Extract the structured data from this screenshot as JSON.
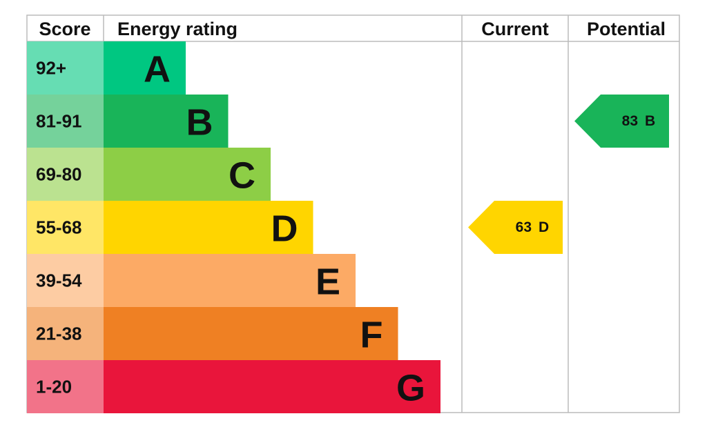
{
  "chart_data": {
    "type": "epc",
    "headers": [
      "Score",
      "Energy rating",
      "Current",
      "Potential"
    ],
    "bands": [
      {
        "score": "92+",
        "letter": "A",
        "color": "#00c781"
      },
      {
        "score": "81-91",
        "letter": "B",
        "color": "#19b459"
      },
      {
        "score": "69-80",
        "letter": "C",
        "color": "#8dce46"
      },
      {
        "score": "55-68",
        "letter": "D",
        "color": "#ffd500"
      },
      {
        "score": "39-54",
        "letter": "E",
        "color": "#fcaa65"
      },
      {
        "score": "21-38",
        "letter": "F",
        "color": "#ef8023"
      },
      {
        "score": "1-20",
        "letter": "G",
        "color": "#e9153b"
      }
    ],
    "current": {
      "value": 63,
      "letter": "D"
    },
    "potential": {
      "value": 83,
      "letter": "B"
    }
  }
}
